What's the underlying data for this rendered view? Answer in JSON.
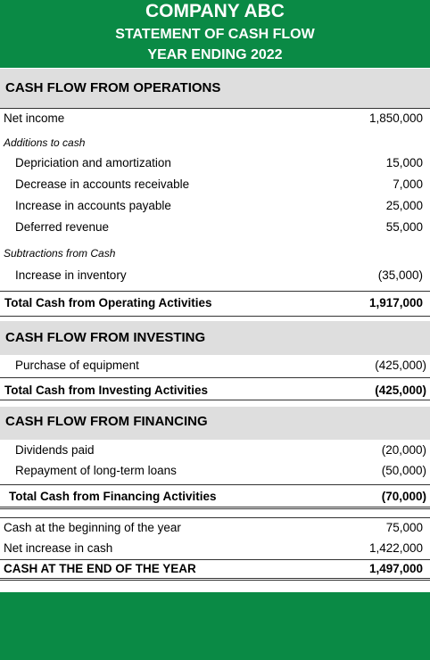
{
  "header": {
    "company": "COMPANY ABC",
    "title": "STATEMENT OF CASH FLOW",
    "period": "YEAR ENDING 2022"
  },
  "lines": [
    {
      "text": "CASH FLOW FROM OPERATIONS"
    },
    {
      "text": "Net income",
      "amount": "1,850,000"
    },
    {
      "text": "Additions to cash"
    },
    {
      "text": "Depriciation and amortization",
      "amount": "15,000"
    },
    {
      "text": "Decrease in accounts receivable",
      "amount": "7,000"
    },
    {
      "text": "Increase in accounts payable",
      "amount": "25,000"
    },
    {
      "text": "Deferred revenue",
      "amount": "55,000"
    },
    {
      "text": "Subtractions from Cash"
    },
    {
      "text": "Increase in inventory",
      "amount": "(35,000)"
    },
    {
      "text": "Total Cash from Operating Activities",
      "amount": "1,917,000"
    },
    {
      "text": "CASH FLOW FROM INVESTING"
    },
    {
      "text": "Purchase of equipment",
      "amount": "(425,000)"
    },
    {
      "text": "Total Cash from Investing Activities",
      "amount": "(425,000)"
    },
    {
      "text": "CASH FLOW FROM FINANCING"
    },
    {
      "text": "Dividends paid",
      "amount": "(20,000)"
    },
    {
      "text": "Repayment of long-term loans",
      "amount": "(50,000)"
    },
    {
      "text": "Total Cash from Financing Activities",
      "amount": "(70,000)"
    },
    {
      "text": "Cash at the beginning of the year",
      "amount": "75,000"
    },
    {
      "text": "Net increase in cash",
      "amount": "1,422,000"
    },
    {
      "text": "CASH AT THE END OF THE YEAR",
      "amount": "1,497,000"
    }
  ]
}
